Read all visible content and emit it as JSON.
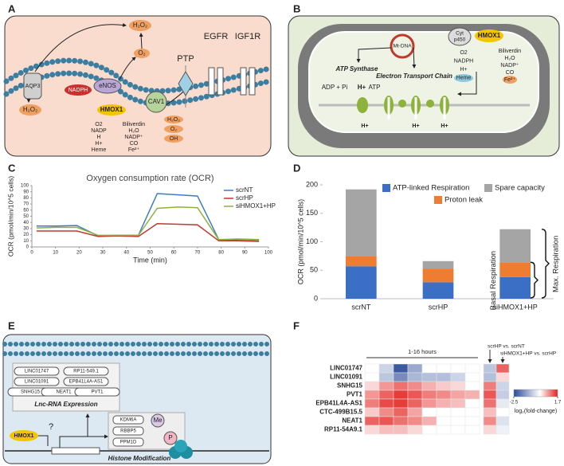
{
  "panel_labels": [
    "A",
    "B",
    "C",
    "D",
    "E",
    "F"
  ],
  "diagram_a": {
    "h2o2_top": "H₂O₂",
    "aqp3": "AQP3",
    "o2": "O₂",
    "h2o2_left": "H₂O₂",
    "nadph": "NADPH",
    "enos": "eNOS",
    "hmox1": "HMOX1",
    "cav1": "CAV1",
    "ptp": "PTP",
    "egfr": "EGFR",
    "igf1r": "IGF1R",
    "substrates": [
      "O2",
      "NADP",
      "H",
      "H+",
      "Heme"
    ],
    "products": [
      "Biliverdin",
      "H₂O",
      "NADP⁺",
      "CO",
      "Fe²⁺"
    ],
    "ros": [
      "H₂O₂",
      "O₂",
      "OH"
    ]
  },
  "diagram_b": {
    "mtdna": "Mt-DNA",
    "cyt": [
      "Cyt",
      "p450"
    ],
    "hmox1": "HMOX1",
    "atp_synthase": "ATP Synthase",
    "adp": "ADP + Pi",
    "h": "H+",
    "atp": "ATP",
    "etc": "Electron Transport Chain",
    "substrates": [
      "O2",
      "NADPH",
      "H+",
      "Heme"
    ],
    "products": [
      "Biliverdin",
      "H₂O",
      "NADP⁺",
      "CO",
      "Fe²⁺"
    ],
    "protons": [
      "H+",
      "H+",
      "H+"
    ]
  },
  "diagram_e": {
    "lncrnas": [
      "LINC01747",
      "RP11-549.1",
      "LINC01091",
      "EPB41L4A-AS1",
      "SNHG15",
      "NEAT1",
      "PVT1"
    ],
    "lncrna_title": "Lnc-RNA Expression",
    "hmox1": "HMOX1",
    "question": "?",
    "modifiers": [
      "KDM6A",
      "RBBP5",
      "PPM1D"
    ],
    "me": "Me",
    "p": "P",
    "histone_title": "Histone Modification"
  },
  "chart_data": [
    {
      "type": "line",
      "title": "Oxygen consumption rate (OCR)",
      "x_label": "Time (min)",
      "y_label": "OCR (pmol/min/10^5 cells)",
      "x": [
        2,
        10,
        19,
        28,
        36,
        45,
        53,
        62,
        70,
        79,
        87,
        96
      ],
      "series": [
        {
          "name": "scrNT",
          "color": "#3d7cc9",
          "values": [
            34,
            34,
            35,
            18,
            19,
            19,
            87,
            85,
            83,
            12,
            12,
            11
          ]
        },
        {
          "name": "scrHP",
          "color": "#c0392b",
          "values": [
            26,
            26,
            26,
            17,
            18,
            17,
            38,
            37,
            36,
            10,
            10,
            9
          ]
        },
        {
          "name": "siHMOX1+HP",
          "color": "#8db33a",
          "values": [
            31,
            32,
            32,
            19,
            19,
            19,
            63,
            65,
            64,
            12,
            13,
            12
          ]
        }
      ],
      "xlim": [
        0,
        100
      ],
      "xticks": [
        0,
        10,
        20,
        30,
        40,
        50,
        60,
        70,
        80,
        90,
        100
      ],
      "ylim": [
        0,
        100
      ],
      "yticks": [
        0,
        10,
        20,
        30,
        40,
        50,
        60,
        70,
        80,
        90,
        100
      ],
      "legend": "top-right"
    },
    {
      "type": "stacked_bar",
      "y_label": "OCR (pmol/min/10^5 cells)",
      "categories": [
        "scrNT",
        "scrHP",
        "siHMOX1+HP"
      ],
      "series": [
        {
          "name": "ATP-linked Respiration",
          "color": "#3b6fc6",
          "values": [
            57,
            29,
            38
          ]
        },
        {
          "name": "Proton leak",
          "color": "#ee7d31",
          "values": [
            18,
            24,
            26
          ]
        },
        {
          "name": "Spare capacity",
          "color": "#a5a5a5",
          "values": [
            117,
            13,
            58
          ]
        }
      ],
      "ylim": [
        0,
        200
      ],
      "yticks": [
        0,
        50,
        100,
        150,
        200
      ],
      "legend": "top-right",
      "annotations": [
        "Basal Respiration",
        "Max. Respiration"
      ]
    },
    {
      "type": "heatmap",
      "rows": [
        "LINC01747",
        "LINC01091",
        "SNHG15",
        "PVT1",
        "EPB41L4A-AS1",
        "CTC-499B15.5",
        "NEAT1",
        "RP11-54A9.1"
      ],
      "time_label": "1-16 hours",
      "time_course": [
        [
          null,
          -0.6,
          -2.3,
          -1.2,
          null,
          null,
          null,
          null
        ],
        [
          null,
          -0.8,
          -1.6,
          -1.0,
          -0.9,
          -0.9,
          -0.6,
          null
        ],
        [
          0.3,
          0.8,
          1.1,
          0.9,
          0.6,
          0.4,
          0.3,
          null
        ],
        [
          0.8,
          1.2,
          1.5,
          1.3,
          1.0,
          0.9,
          0.7,
          0.6
        ],
        [
          1.0,
          1.4,
          1.5,
          1.2,
          0.8,
          0.6,
          0.5,
          null
        ],
        [
          0.4,
          0.9,
          1.2,
          0.7,
          null,
          null,
          null,
          null
        ],
        [
          1.2,
          1.3,
          1.1,
          0.9,
          0.6,
          null,
          null,
          null
        ],
        [
          0.3,
          0.5,
          0.5,
          0.3,
          null,
          null,
          null,
          null
        ]
      ],
      "comparison_labels": [
        "scrHP vs. scrNT",
        "siHMOX1+HP vs. scrHP"
      ],
      "comparisons": [
        [
          -0.8,
          1.2
        ],
        [
          -0.9,
          0.3
        ],
        [
          1.0,
          -0.6
        ],
        [
          1.3,
          -0.7
        ],
        [
          1.1,
          -0.3
        ],
        [
          0.5,
          null
        ],
        [
          0.9,
          -0.4
        ],
        [
          0.3,
          -0.2
        ]
      ],
      "clim": [
        -2.5,
        1.7
      ],
      "colorbar_ticks": [
        -2.5,
        1.7
      ],
      "colorbar_label": "log₂(fold-change)",
      "colors": [
        "#2b4c9a",
        "#ffffff",
        "#e3231f"
      ]
    }
  ]
}
